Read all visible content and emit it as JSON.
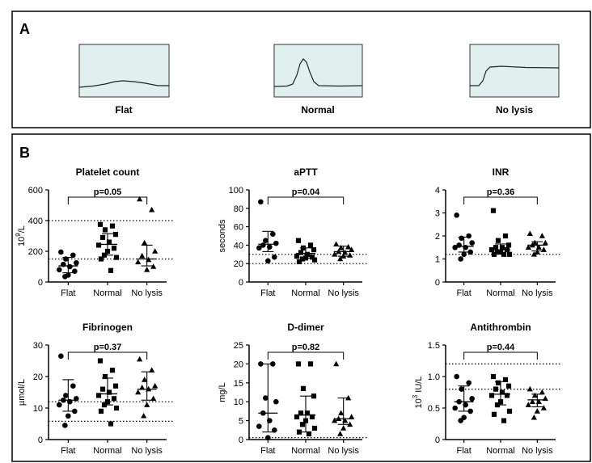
{
  "panel_a": {
    "label": "A",
    "traces": [
      {
        "label": "Flat"
      },
      {
        "label": "Normal"
      },
      {
        "label": "No lysis"
      }
    ],
    "colors": {
      "trace_bg": "#dff0ee",
      "trace_line": "#222222",
      "trace_border": "#333333"
    }
  },
  "panel_b": {
    "label": "B"
  },
  "chart_data": [
    {
      "type": "scatter",
      "title": "Platelet count",
      "ylabel_base": "10",
      "ylabel_sup": "9",
      "ylabel_tail": "/L",
      "categories": [
        "Flat",
        "Normal",
        "No lysis"
      ],
      "ylim": [
        0,
        600
      ],
      "yticks": [
        "0",
        "200",
        "400",
        "600"
      ],
      "ref_lines": [
        150,
        400
      ],
      "p_value": "p=0.05",
      "bracket": [
        0,
        2
      ],
      "series": [
        {
          "marker": "circle",
          "values": [
            195,
            175,
            150,
            125,
            115,
            100,
            80,
            70,
            45,
            35
          ],
          "median": 105,
          "iqr": [
            60,
            160
          ]
        },
        {
          "marker": "square",
          "values": [
            375,
            365,
            340,
            310,
            290,
            260,
            240,
            220,
            200,
            175,
            160,
            150,
            75
          ],
          "median": 245,
          "iqr": [
            175,
            315
          ]
        },
        {
          "marker": "triangle",
          "values": [
            540,
            470,
            255,
            200,
            170,
            145,
            130,
            100,
            80
          ],
          "median": 150,
          "iqr": [
            105,
            240
          ]
        }
      ]
    },
    {
      "type": "scatter",
      "title": "aPTT",
      "ylabel": "seconds",
      "categories": [
        "Flat",
        "Normal",
        "No lysis"
      ],
      "ylim": [
        0,
        100
      ],
      "yticks": [
        "0",
        "20",
        "40",
        "60",
        "80",
        "100"
      ],
      "ref_lines": [
        20,
        30
      ],
      "p_value": "p=0.04",
      "bracket": [
        0,
        2
      ],
      "series": [
        {
          "marker": "circle",
          "values": [
            87,
            52,
            45,
            42,
            40,
            38,
            37,
            27,
            23
          ],
          "median": 41,
          "iqr": [
            33,
            55
          ]
        },
        {
          "marker": "square",
          "values": [
            45,
            40,
            37,
            35,
            32,
            30,
            28,
            27,
            26,
            25,
            24,
            22
          ],
          "median": 31,
          "iqr": [
            26,
            37
          ]
        },
        {
          "marker": "triangle",
          "values": [
            41,
            38,
            37,
            35,
            33,
            32,
            30,
            29,
            28,
            25
          ],
          "median": 33,
          "iqr": [
            28,
            39
          ]
        }
      ]
    },
    {
      "type": "scatter",
      "title": "INR",
      "ylabel": "",
      "categories": [
        "Flat",
        "Normal",
        "No lysis"
      ],
      "ylim": [
        0,
        4
      ],
      "yticks": [
        "0",
        "1",
        "2",
        "3",
        "4"
      ],
      "ref_lines": [
        1.2
      ],
      "p_value": "p=0.36",
      "bracket": [
        0,
        2
      ],
      "series": [
        {
          "marker": "circle",
          "values": [
            2.9,
            2.0,
            1.9,
            1.7,
            1.6,
            1.5,
            1.5,
            1.3,
            1.2,
            1.0
          ],
          "median": 1.55,
          "iqr": [
            1.3,
            1.95
          ]
        },
        {
          "marker": "square",
          "values": [
            3.1,
            2.0,
            1.8,
            1.6,
            1.5,
            1.5,
            1.4,
            1.4,
            1.3,
            1.3,
            1.2,
            1.2,
            1.2
          ],
          "median": 1.4,
          "iqr": [
            1.25,
            1.65
          ]
        },
        {
          "marker": "triangle",
          "values": [
            2.1,
            2.0,
            1.7,
            1.7,
            1.6,
            1.5,
            1.5,
            1.4,
            1.3,
            1.2
          ],
          "median": 1.6,
          "iqr": [
            1.35,
            1.75
          ]
        }
      ]
    },
    {
      "type": "scatter",
      "title": "Fibrinogen",
      "ylabel": "µmol/L",
      "categories": [
        "Flat",
        "Normal",
        "No lysis"
      ],
      "ylim": [
        0,
        30
      ],
      "yticks": [
        "0",
        "10",
        "20",
        "30"
      ],
      "ref_lines": [
        5.8,
        12
      ],
      "p_value": "p=0.37",
      "bracket": [
        0,
        2
      ],
      "series": [
        {
          "marker": "circle",
          "values": [
            26.5,
            17,
            14,
            13,
            12.5,
            12,
            11,
            9,
            7.5,
            4.5
          ],
          "median": 12.5,
          "iqr": [
            9,
            19
          ]
        },
        {
          "marker": "square",
          "values": [
            25,
            22,
            20,
            17,
            16,
            15,
            14,
            13,
            12,
            11,
            10,
            9,
            5
          ],
          "median": 14.5,
          "iqr": [
            11,
            19.5
          ]
        },
        {
          "marker": "triangle",
          "values": [
            25.5,
            22,
            19,
            17,
            16.5,
            16,
            15,
            13,
            11,
            7.5
          ],
          "median": 16,
          "iqr": [
            12.5,
            21.5
          ]
        }
      ]
    },
    {
      "type": "scatter",
      "title": "D-dimer",
      "ylabel": "mg/L",
      "categories": [
        "Flat",
        "Normal",
        "No lysis"
      ],
      "ylim": [
        0,
        25
      ],
      "yticks": [
        "0",
        "5",
        "10",
        "15",
        "20",
        "25"
      ],
      "ref_lines": [
        0.5
      ],
      "p_value": "p=0.82",
      "bracket": [
        0,
        2
      ],
      "series": [
        {
          "marker": "circle",
          "values": [
            20,
            20,
            11,
            10,
            7,
            5,
            3.5,
            2.5,
            0.5
          ],
          "median": 7,
          "iqr": [
            2,
            20
          ]
        },
        {
          "marker": "square",
          "values": [
            20,
            20,
            13.5,
            11.5,
            7,
            7,
            6,
            6,
            5,
            4,
            3,
            2,
            1.5
          ],
          "median": 6.5,
          "iqr": [
            2,
            11.5
          ]
        },
        {
          "marker": "triangle",
          "values": [
            20,
            11,
            7,
            6,
            5.5,
            5,
            5,
            4,
            3,
            1.5
          ],
          "median": 5.5,
          "iqr": [
            4,
            11
          ]
        }
      ]
    },
    {
      "type": "scatter",
      "title": "Antithrombin",
      "ylabel_base": "10",
      "ylabel_sup": "3",
      "ylabel_tail": " IU/L",
      "categories": [
        "Flat",
        "Normal",
        "No lysis"
      ],
      "ylim": [
        0,
        1.5
      ],
      "yticks": [
        "0",
        "0.5",
        "1.0",
        "1.5"
      ],
      "ref_lines": [
        0.8,
        1.2
      ],
      "p_value": "p=0.44",
      "bracket": [
        0,
        2
      ],
      "series": [
        {
          "marker": "circle",
          "values": [
            1.0,
            0.9,
            0.8,
            0.65,
            0.6,
            0.55,
            0.5,
            0.45,
            0.35,
            0.3
          ],
          "median": 0.6,
          "iqr": [
            0.45,
            0.85
          ]
        },
        {
          "marker": "square",
          "values": [
            1.0,
            0.95,
            0.9,
            0.85,
            0.8,
            0.75,
            0.7,
            0.7,
            0.6,
            0.55,
            0.45,
            0.4,
            0.3
          ],
          "median": 0.72,
          "iqr": [
            0.55,
            0.92
          ]
        },
        {
          "marker": "triangle",
          "values": [
            0.8,
            0.75,
            0.7,
            0.65,
            0.6,
            0.6,
            0.55,
            0.5,
            0.45,
            0.35
          ],
          "median": 0.63,
          "iqr": [
            0.52,
            0.72
          ]
        }
      ]
    }
  ]
}
